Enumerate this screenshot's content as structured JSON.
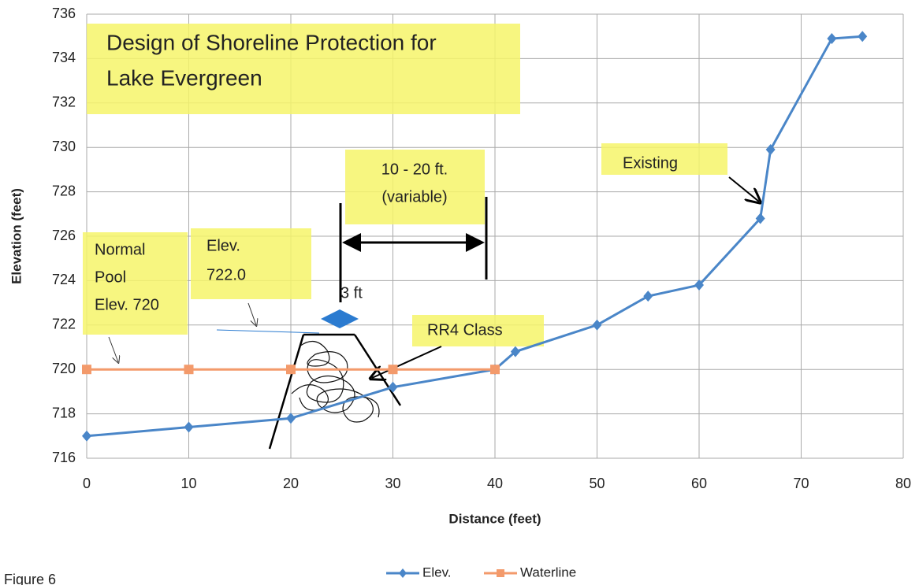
{
  "chart_data": {
    "type": "line",
    "x_label": "Distance (feet)",
    "y_label": "Elevation (feet)",
    "xlim": [
      0,
      80
    ],
    "xticks": [
      0,
      10,
      20,
      30,
      40,
      50,
      60,
      70,
      80
    ],
    "ylim": [
      716,
      736
    ],
    "yticks": [
      716,
      718,
      720,
      722,
      724,
      726,
      728,
      730,
      732,
      734,
      736
    ],
    "grid": true,
    "legend": "bottom",
    "series": [
      {
        "name": "Elev.",
        "color": "#4a86c8",
        "marker": "diamond",
        "x": [
          0,
          10,
          20,
          30,
          40,
          42,
          50,
          55,
          60,
          66,
          67,
          73,
          76
        ],
        "values": [
          717,
          717.4,
          717.8,
          719.2,
          720,
          720.8,
          722,
          723.3,
          723.8,
          726.8,
          729.9,
          734.9,
          735
        ]
      },
      {
        "name": "Waterline",
        "color": "#f39a6b",
        "marker": "square",
        "x": [
          0,
          10,
          20,
          30,
          40
        ],
        "values": [
          720,
          720,
          720,
          720,
          720
        ]
      }
    ],
    "annotations": [
      {
        "lines": [
          "Design of Shoreline Protection for",
          "Lake Evergreen"
        ]
      },
      {
        "lines": [
          "Normal",
          "Pool",
          "Elev. 720"
        ]
      },
      {
        "lines": [
          "Elev.",
          "722.0"
        ]
      },
      {
        "lines": [
          "10 - 20 ft.",
          "(variable)"
        ]
      },
      {
        "lines": [
          "3 ft"
        ]
      },
      {
        "lines": [
          "RR4  Class"
        ]
      },
      {
        "lines": [
          "Existing"
        ]
      }
    ],
    "caption": "Figure 6"
  }
}
